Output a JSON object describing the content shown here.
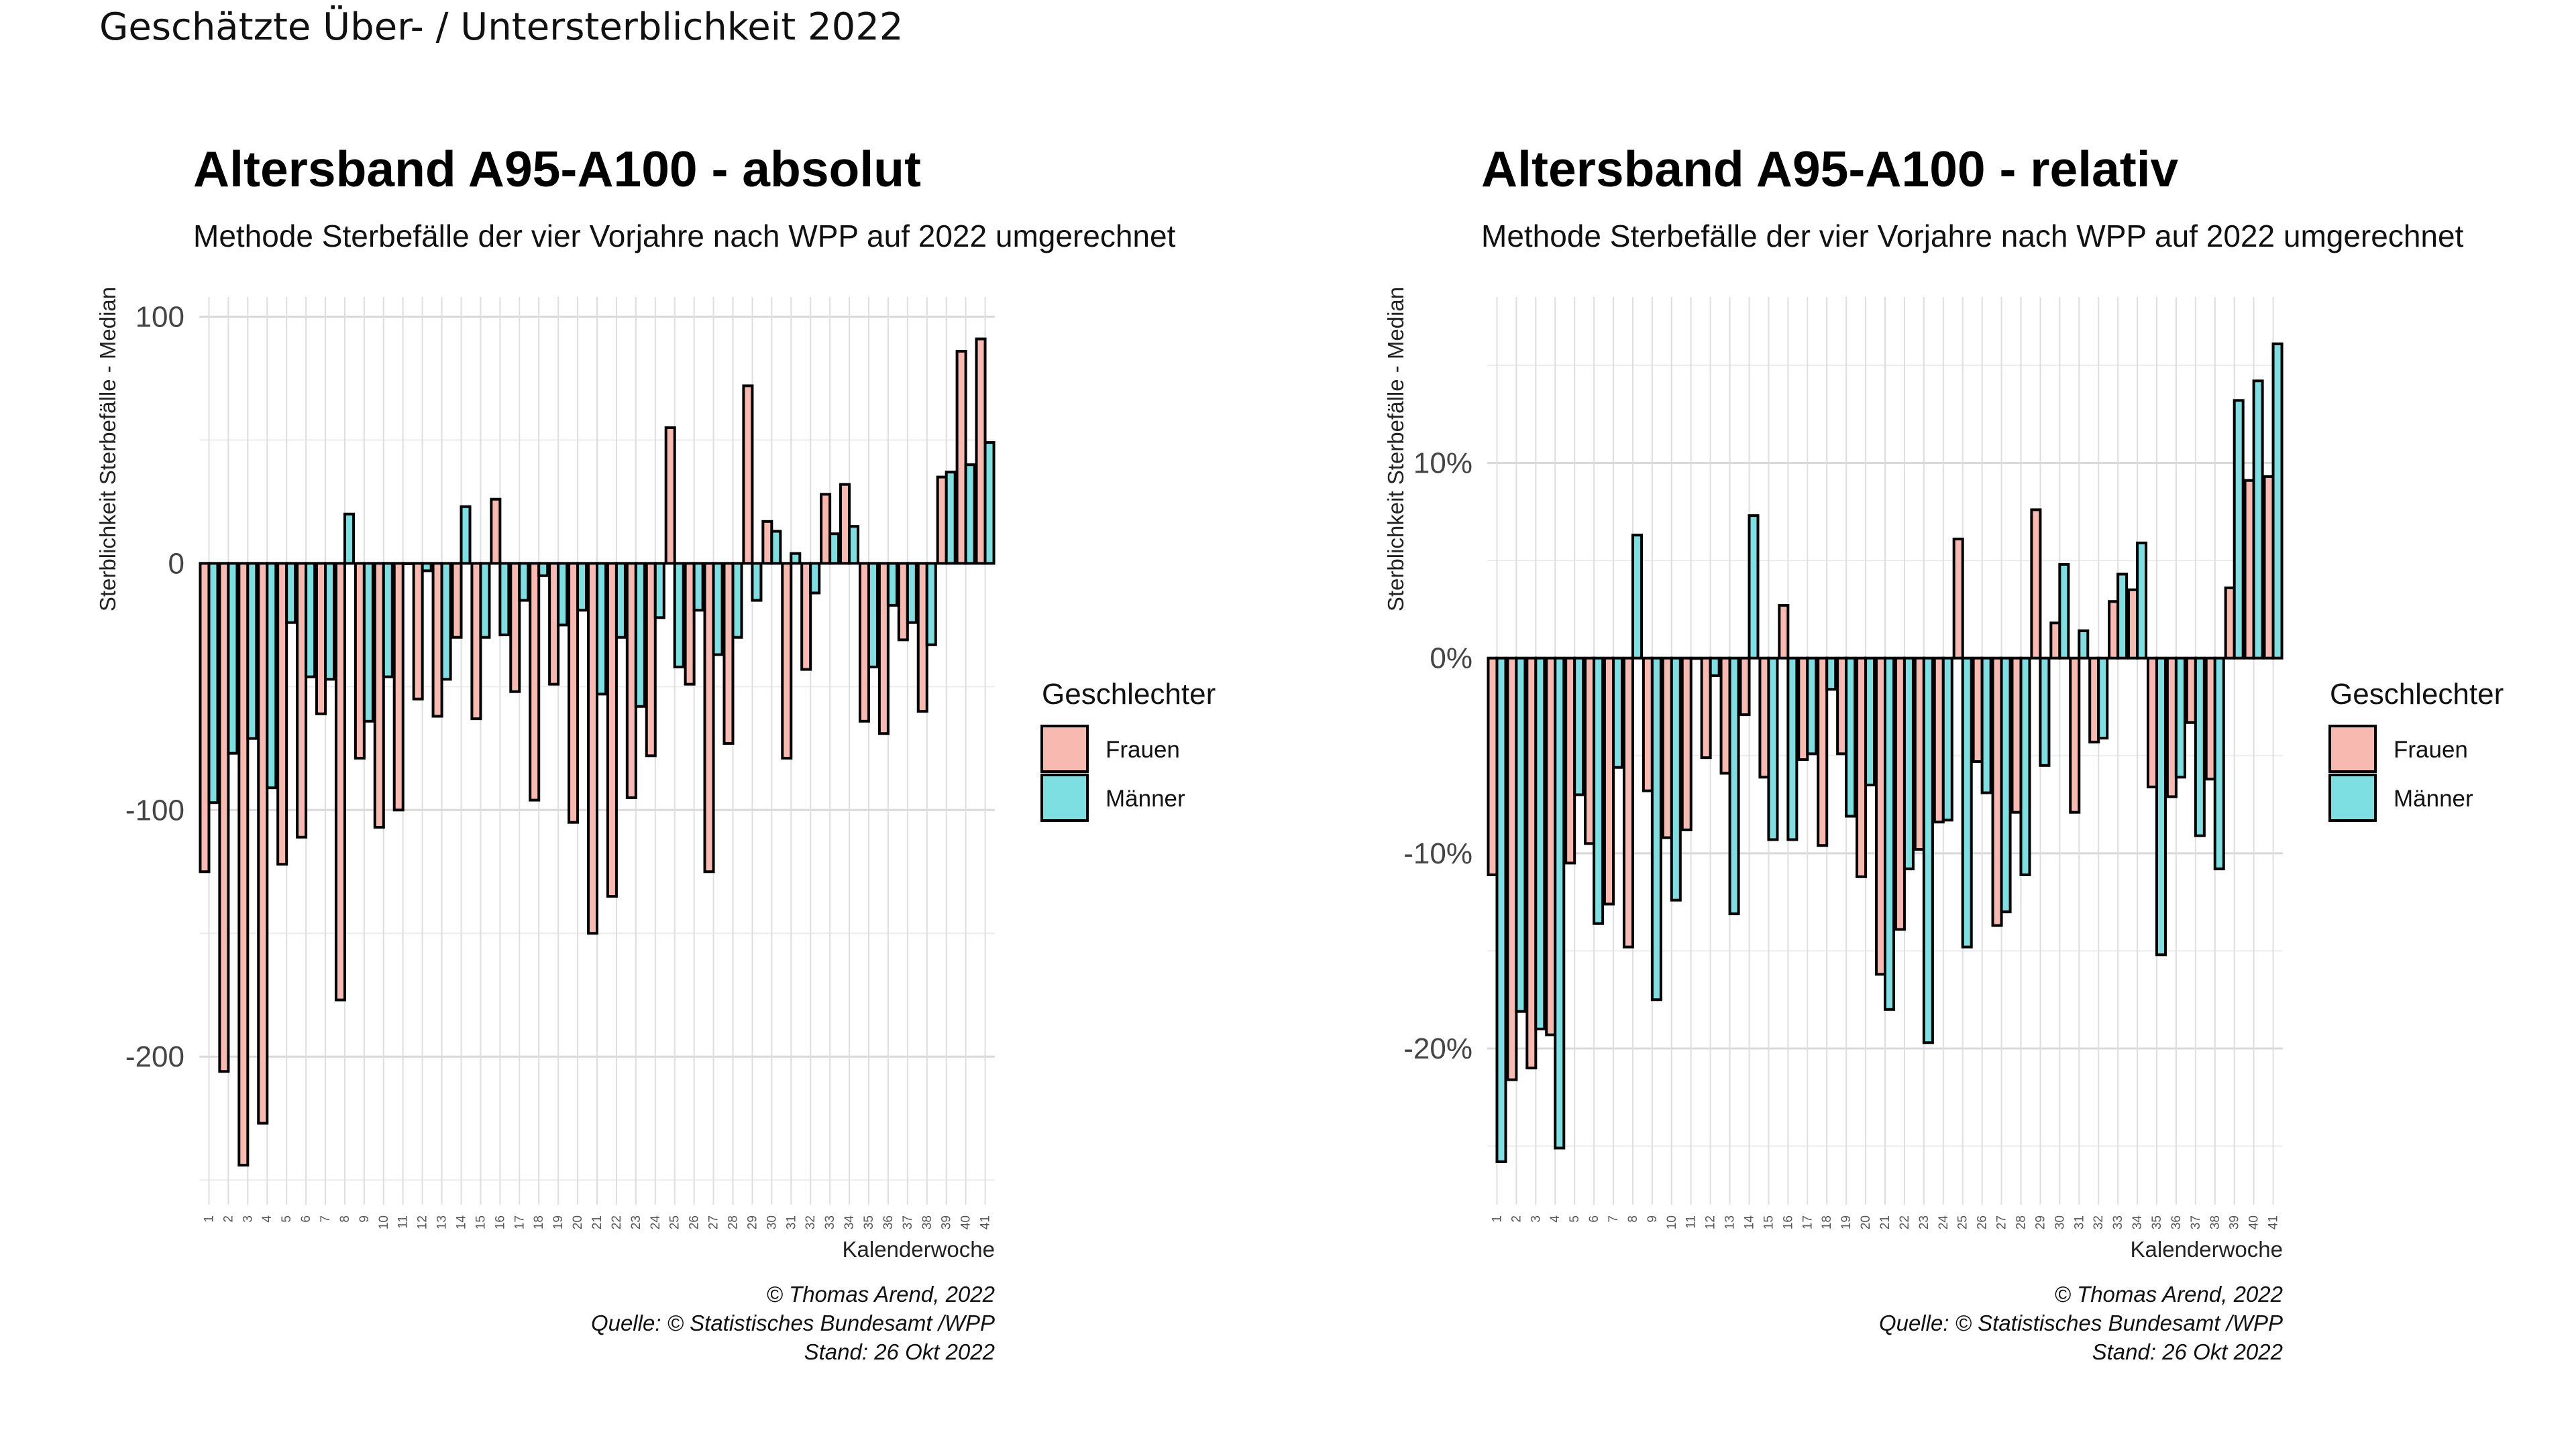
{
  "page": {
    "title": "Geschätzte Über- / Untersterblichkeit 2022"
  },
  "chart_data": [
    {
      "type": "bar",
      "title": "Altersband A95-A100 - absolut",
      "subtitle": "Methode Sterbefälle der vier Vorjahre nach WPP auf 2022 umgerechnet",
      "xlabel": "Kalenderwoche",
      "ylabel": "Sterblichkeit Sterbefälle - Median",
      "ylim": [
        -260,
        108
      ],
      "yticks": [
        -200,
        -100,
        0,
        100
      ],
      "ytick_labels": [
        "-200",
        "-100",
        "0",
        "100"
      ],
      "grid": true,
      "legend": {
        "title": "Geschlechter",
        "position": "right"
      },
      "caption": [
        "© Thomas Arend, 2022",
        "Quelle: © Statistisches Bundesamt /WPP",
        "Stand: 26 Okt 2022"
      ],
      "categories": [
        "1",
        "2",
        "3",
        "4",
        "5",
        "6",
        "7",
        "8",
        "9",
        "10",
        "11",
        "12",
        "13",
        "14",
        "15",
        "16",
        "17",
        "18",
        "19",
        "20",
        "21",
        "22",
        "23",
        "24",
        "25",
        "26",
        "27",
        "28",
        "29",
        "30",
        "31",
        "32",
        "33",
        "34",
        "35",
        "36",
        "37",
        "38",
        "39",
        "40",
        "41"
      ],
      "series": [
        {
          "name": "Frauen",
          "color": "#f8b9b1",
          "values": [
            -125,
            -206,
            -244,
            -227,
            -122,
            -111,
            -61,
            -177,
            -79,
            -107,
            -100,
            -55,
            -62,
            -30,
            -63,
            26,
            -52,
            -96,
            -49,
            -105,
            -150,
            -135,
            -95,
            -78,
            55,
            -49,
            -125,
            -73,
            72,
            17,
            -79,
            -43,
            28,
            32,
            -64,
            -69,
            -31,
            -60,
            35,
            86,
            91
          ]
        },
        {
          "name": "Männer",
          "color": "#7ddfe1",
          "values": [
            -97,
            -77,
            -71,
            -91,
            -24,
            -46,
            -47,
            20,
            -64,
            -46,
            0,
            -3,
            -47,
            23,
            -30,
            -29,
            -15,
            -5,
            -25,
            -19,
            -53,
            -30,
            -58,
            -22,
            -42,
            -19,
            -37,
            -30,
            -15,
            13,
            4,
            -12,
            12,
            15,
            -42,
            -17,
            -24,
            -33,
            37,
            40,
            49
          ]
        }
      ]
    },
    {
      "type": "bar",
      "title": "Altersband A95-A100 - relativ",
      "subtitle": "Methode Sterbefälle der vier Vorjahre nach WPP auf 2022 umgerechnet",
      "xlabel": "Kalenderwoche",
      "ylabel": "Sterblichkeit Sterbefälle - Median",
      "ylim": [
        -28,
        18.5
      ],
      "yticks": [
        -20,
        -10,
        0,
        10
      ],
      "ytick_labels": [
        "-20%",
        "-10%",
        "0%",
        "10%"
      ],
      "grid": true,
      "legend": {
        "title": "Geschlechter",
        "position": "right"
      },
      "caption": [
        "© Thomas Arend, 2022",
        "Quelle: © Statistisches Bundesamt /WPP",
        "Stand: 26 Okt 2022"
      ],
      "categories": [
        "1",
        "2",
        "3",
        "4",
        "5",
        "6",
        "7",
        "8",
        "9",
        "10",
        "11",
        "12",
        "13",
        "14",
        "15",
        "16",
        "17",
        "18",
        "19",
        "20",
        "21",
        "22",
        "23",
        "24",
        "25",
        "26",
        "27",
        "28",
        "29",
        "30",
        "31",
        "32",
        "33",
        "34",
        "35",
        "36",
        "37",
        "38",
        "39",
        "40",
        "41"
      ],
      "series": [
        {
          "name": "Frauen",
          "color": "#f8b9b1",
          "values": [
            -11.1,
            -21.6,
            -21.0,
            -19.3,
            -10.5,
            -9.5,
            -12.6,
            -14.8,
            -6.8,
            -9.2,
            -8.8,
            -5.1,
            -5.9,
            -2.9,
            -6.1,
            2.7,
            -5.2,
            -9.6,
            -4.9,
            -11.2,
            -16.2,
            -13.9,
            -9.8,
            -8.4,
            6.1,
            -5.3,
            -13.7,
            -7.9,
            7.6,
            1.8,
            -7.9,
            -4.3,
            2.9,
            3.5,
            -6.6,
            -7.1,
            -3.3,
            -6.2,
            3.6,
            9.1,
            9.3
          ]
        },
        {
          "name": "Männer",
          "color": "#7ddfe1",
          "values": [
            -25.8,
            -18.1,
            -19.0,
            -25.1,
            -7.0,
            -13.6,
            -5.6,
            6.3,
            -17.5,
            -12.4,
            0,
            -0.9,
            -13.1,
            7.3,
            -9.3,
            -9.3,
            -4.9,
            -1.6,
            -8.1,
            -6.5,
            -18.0,
            -10.8,
            -19.7,
            -8.3,
            -14.8,
            -6.9,
            -13.0,
            -11.1,
            -5.5,
            4.8,
            1.4,
            -4.1,
            4.3,
            5.9,
            -15.2,
            -6.1,
            -9.1,
            -10.8,
            13.2,
            14.2,
            16.1
          ]
        }
      ]
    }
  ]
}
